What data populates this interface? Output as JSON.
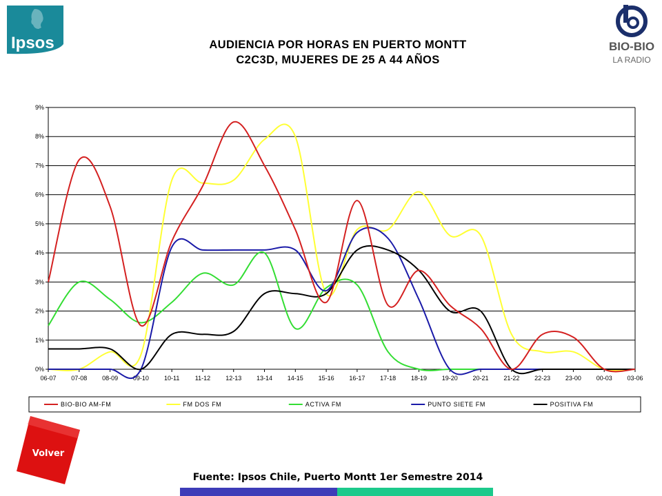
{
  "header": {
    "title_line1": "AUDIENCIA POR HORAS EN PUERTO MONTT",
    "title_line2": "C2C3D, MUJERES DE 25 A 44 AÑOS",
    "ipsos_logo_text": "Ipsos",
    "biobio_logo_text": "BIO-BIO",
    "biobio_logo_sub": "LA RADIO"
  },
  "volver_label": "Volver",
  "source": "Fuente: Ipsos Chile, Puerto Montt 1er Semestre 2014",
  "colors": {
    "bio_bio": "#d42020",
    "fm_dos": "#ffff33",
    "activa": "#33dd33",
    "punto_siete": "#1a1aa8",
    "positiva": "#000000",
    "volver": "#dd1111",
    "ipsos": "#1a8a9a"
  },
  "chart_data": {
    "type": "line",
    "categories": [
      "06-07",
      "07-08",
      "08-09",
      "09-10",
      "10-11",
      "11-12",
      "12-13",
      "13-14",
      "14-15",
      "15-16",
      "16-17",
      "17-18",
      "18-19",
      "19-20",
      "20-21",
      "21-22",
      "22-23",
      "23-00",
      "00-03",
      "03-06"
    ],
    "ylim": [
      0,
      9
    ],
    "yticks": [
      "0%",
      "1%",
      "2%",
      "3%",
      "4%",
      "5%",
      "6%",
      "7%",
      "8%",
      "9%"
    ],
    "grid": true,
    "legend_position": "bottom",
    "series": [
      {
        "name": "BIO-BIO AM-FM",
        "color": "#d42020",
        "values": [
          3.0,
          7.2,
          5.6,
          1.5,
          4.4,
          6.3,
          8.5,
          7.0,
          4.8,
          2.3,
          5.8,
          2.2,
          3.4,
          2.2,
          1.4,
          0.0,
          1.2,
          1.1,
          0.0,
          0.0
        ]
      },
      {
        "name": "FM DOS FM",
        "color": "#ffff33",
        "values": [
          0.0,
          0.0,
          0.6,
          0.5,
          6.5,
          6.4,
          6.5,
          7.9,
          8.0,
          2.6,
          4.8,
          4.8,
          6.1,
          4.6,
          4.6,
          1.2,
          0.6,
          0.6,
          0.0,
          0.0
        ]
      },
      {
        "name": "ACTIVA FM",
        "color": "#33dd33",
        "values": [
          1.5,
          3.0,
          2.4,
          1.6,
          2.3,
          3.3,
          2.9,
          4.0,
          1.4,
          2.8,
          2.9,
          0.6,
          0.0,
          0.0,
          0.0,
          0.0,
          0.0,
          0.0,
          0.0,
          0.0
        ]
      },
      {
        "name": "PUNTO SIETE FM",
        "color": "#1a1aa8",
        "values": [
          0.0,
          0.0,
          0.0,
          0.0,
          4.2,
          4.1,
          4.1,
          4.1,
          4.1,
          2.7,
          4.7,
          4.5,
          2.4,
          0.0,
          0.0,
          0.0,
          0.0,
          0.0,
          0.0,
          0.0
        ]
      },
      {
        "name": "POSITIVA FM",
        "color": "#000000",
        "values": [
          0.7,
          0.7,
          0.7,
          0.0,
          1.2,
          1.2,
          1.3,
          2.6,
          2.6,
          2.6,
          4.1,
          4.1,
          3.4,
          2.0,
          2.0,
          0.0,
          0.0,
          0.0,
          0.0,
          0.0
        ]
      }
    ]
  }
}
